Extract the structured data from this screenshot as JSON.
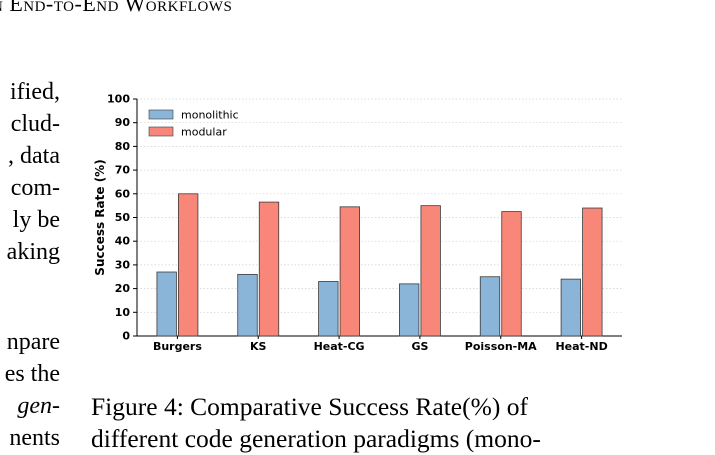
{
  "page": {
    "running_head": "n End-to-End Workflows",
    "left_column_upper": [
      "ified,",
      "clud-",
      ", data",
      "com-",
      "ly be",
      "aking"
    ],
    "left_column_lower": [
      "npare",
      "es the",
      "gen-",
      "nents"
    ],
    "caption_label": "Figure 4:",
    "caption_lines": [
      "Comparative Success Rate(%) of",
      "different code generation paradigms (mono-"
    ]
  },
  "chart_data": {
    "type": "bar",
    "categories": [
      "Burgers",
      "KS",
      "Heat-CG",
      "GS",
      "Poisson-MA",
      "Heat-ND"
    ],
    "series": [
      {
        "name": "monolithic",
        "values": [
          27,
          26,
          23,
          22,
          25,
          24
        ],
        "color": "#8ab4d8"
      },
      {
        "name": "modular",
        "values": [
          60,
          56.5,
          54.5,
          55,
          52.5,
          54
        ],
        "color": "#f8877a"
      }
    ],
    "ylabel": "Success Rate (%)",
    "xlabel": "",
    "ylim": [
      0,
      100
    ],
    "yticks": [
      0,
      10,
      20,
      30,
      40,
      50,
      60,
      70,
      80,
      90,
      100
    ],
    "grid": "horizontal dotted",
    "legend_position": "top-left"
  }
}
